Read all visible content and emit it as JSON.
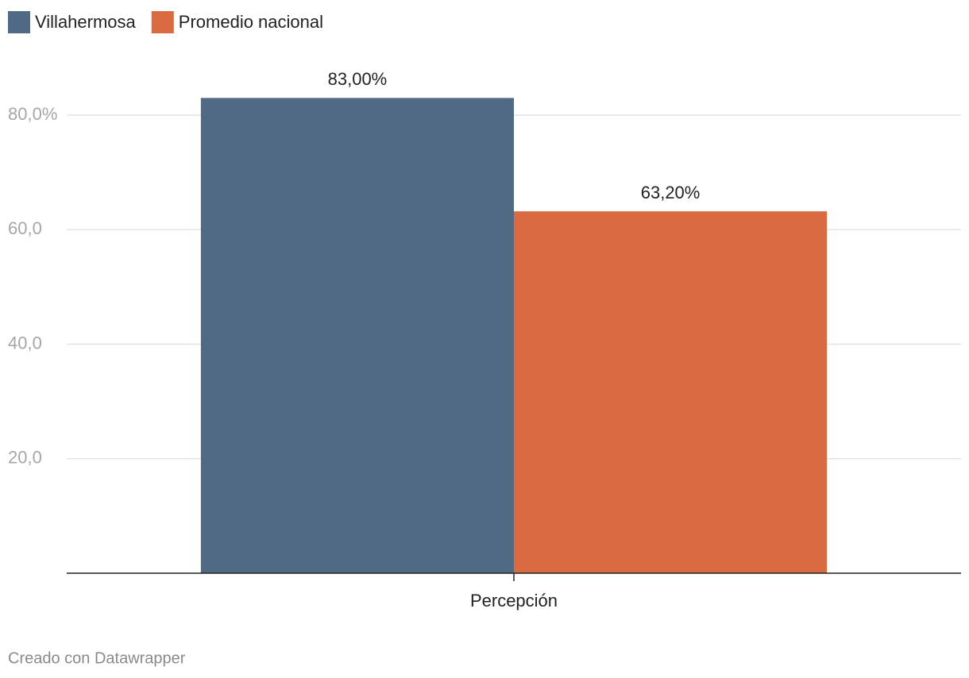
{
  "chart_data": {
    "type": "bar",
    "categories": [
      "Percepción"
    ],
    "series": [
      {
        "name": "Villahermosa",
        "color": "#506a84",
        "values": [
          83
        ],
        "value_labels": [
          "83,00%"
        ]
      },
      {
        "name": "Promedio nacional",
        "color": "#d96a42",
        "values": [
          63.2
        ],
        "value_labels": [
          "63,20%"
        ]
      }
    ],
    "ylim": [
      0,
      90
    ],
    "yticks": [
      {
        "value": 20,
        "label": "20,0"
      },
      {
        "value": 40,
        "label": "40,0"
      },
      {
        "value": 60,
        "label": "60,0"
      },
      {
        "value": 80,
        "label": "80,0%"
      }
    ],
    "grid": true,
    "legend": "top-left",
    "credit": "Creado con Datawrapper"
  }
}
